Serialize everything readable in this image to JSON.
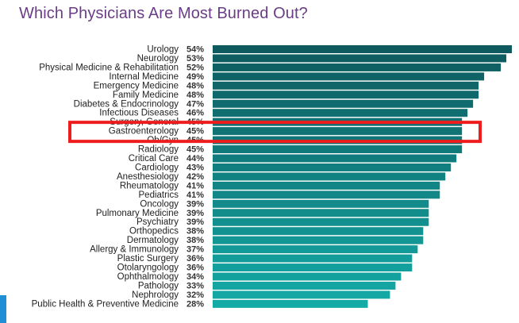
{
  "page": {
    "title": "Which Physicians Are Most Burned Out?"
  },
  "colors": {
    "bar_dark": "#0e5a5e",
    "bar_light": "#14aaa6",
    "highlight": "#ee1c1c",
    "title": "#6a3d86",
    "left_accent": "#1f8fd6"
  },
  "highlight_category": "Gastroenterology",
  "chart_data": {
    "type": "bar",
    "orientation": "horizontal",
    "title": "Which Physicians Are Most Burned Out?",
    "grid": false,
    "legend": "none",
    "xlim": [
      0,
      54
    ],
    "categories": [
      "Urology",
      "Neurology",
      "Physical Medicine & Rehabilitation",
      "Internal Medicine",
      "Emergency Medicine",
      "Family Medicine",
      "Diabetes & Endocrinology",
      "Infectious Diseases",
      "Surgery, General",
      "Gastroenterology",
      "Ob/Gyn",
      "Radiology",
      "Critical Care",
      "Cardiology",
      "Anesthesiology",
      "Rheumatology",
      "Pediatrics",
      "Oncology",
      "Pulmonary Medicine",
      "Psychiatry",
      "Orthopedics",
      "Dermatology",
      "Allergy & Immunology",
      "Plastic Surgery",
      "Otolaryngology",
      "Ophthalmology",
      "Pathology",
      "Nephrology",
      "Public Health & Preventive Medicine"
    ],
    "values": [
      54,
      53,
      52,
      49,
      48,
      48,
      47,
      46,
      45,
      45,
      45,
      45,
      44,
      43,
      42,
      41,
      41,
      39,
      39,
      39,
      38,
      38,
      37,
      36,
      36,
      34,
      33,
      32,
      28
    ],
    "value_labels": [
      "54%",
      "53%",
      "52%",
      "49%",
      "48%",
      "48%",
      "47%",
      "46%",
      "45%",
      "45%",
      "45%",
      "45%",
      "44%",
      "43%",
      "42%",
      "41%",
      "41%",
      "39%",
      "39%",
      "39%",
      "38%",
      "38%",
      "37%",
      "36%",
      "36%",
      "34%",
      "33%",
      "32%",
      "28%"
    ]
  }
}
